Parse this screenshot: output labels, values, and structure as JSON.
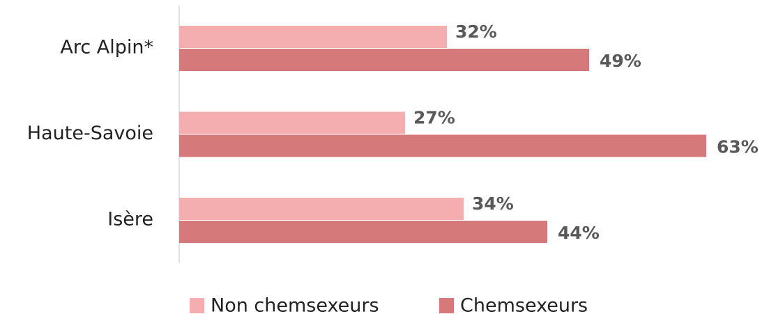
{
  "chart_data": {
    "type": "bar",
    "orientation": "horizontal",
    "categories": [
      "Arc Alpin*",
      "Haute-Savoie",
      "Isère"
    ],
    "series": [
      {
        "name": "Non chemsexeurs",
        "color": "#f4aeb0",
        "values": [
          32,
          27,
          34
        ],
        "value_labels": [
          "32%",
          "27%",
          "34%"
        ]
      },
      {
        "name": "Chemsexeurs",
        "color": "#d6797a",
        "values": [
          49,
          63,
          44
        ],
        "value_labels": [
          "49%",
          "63%",
          "44%"
        ]
      }
    ]
  }
}
